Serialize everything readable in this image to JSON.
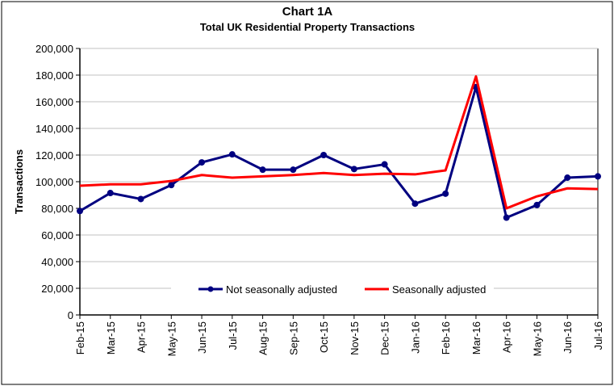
{
  "chart_data": {
    "type": "line",
    "title": "Chart 1A",
    "subtitle": "Total UK Residential Property Transactions",
    "xlabel": "",
    "ylabel": "Transactions",
    "ylim": [
      0,
      200000
    ],
    "yticks": [
      0,
      20000,
      40000,
      60000,
      80000,
      100000,
      120000,
      140000,
      160000,
      180000,
      200000
    ],
    "ytick_labels": [
      "0",
      "20,000",
      "40,000",
      "60,000",
      "80,000",
      "100,000",
      "120,000",
      "140,000",
      "160,000",
      "180,000",
      "200,000"
    ],
    "grid": true,
    "legend_position": "bottom-center inside plot",
    "categories": [
      "Feb-15",
      "Mar-15",
      "Apr-15",
      "May-15",
      "Jun-15",
      "Jul-15",
      "Aug-15",
      "Sep-15",
      "Oct-15",
      "Nov-15",
      "Dec-15",
      "Jan-16",
      "Feb-16",
      "Mar-16",
      "Apr-16",
      "May-16",
      "Jun-16",
      "Jul-16"
    ],
    "series": [
      {
        "name": "Not seasonally adjusted",
        "color": "#000080",
        "markers": true,
        "values": [
          78000,
          91500,
          87000,
          97500,
          114500,
          120500,
          109000,
          109000,
          120000,
          109500,
          113000,
          83500,
          91000,
          171000,
          73000,
          82500,
          103000,
          104000
        ]
      },
      {
        "name": "Seasonally adjusted",
        "color": "#ff0000",
        "markers": false,
        "values": [
          97000,
          98000,
          98000,
          100500,
          105000,
          103000,
          104000,
          105000,
          106500,
          105000,
          106000,
          105500,
          108500,
          179000,
          80000,
          89000,
          95000,
          94500
        ]
      }
    ]
  }
}
